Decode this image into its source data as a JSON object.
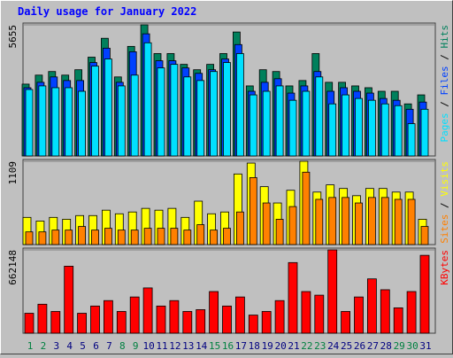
{
  "chart_data": [
    {
      "type": "bar",
      "title": "Daily usage for January 2022",
      "ylim": [
        0,
        5655
      ],
      "yticks": [
        5655
      ],
      "grid": true,
      "legend": "right",
      "legend_separator": " / ",
      "series": [
        {
          "name": "Hits",
          "color": "#00805c",
          "values": [
            3098,
            3486,
            3641,
            3486,
            3718,
            4260,
            5074,
            3408,
            4725,
            5655,
            4415,
            4415,
            3950,
            3718,
            3950,
            4415,
            5345,
            3021,
            3718,
            3641,
            3021,
            3253,
            4415,
            3176,
            3176,
            3021,
            2943,
            2789,
            2789,
            2246,
            2634
          ]
        },
        {
          "name": "Files",
          "color": "#0040ff",
          "values": [
            2943,
            3176,
            3408,
            3253,
            3253,
            4028,
            4648,
            3176,
            4493,
            5267,
            4105,
            4105,
            3796,
            3563,
            3718,
            4183,
            4803,
            2789,
            3176,
            3331,
            2711,
            3021,
            3641,
            2789,
            2943,
            2789,
            2711,
            2479,
            2401,
            2014,
            2324
          ]
        },
        {
          "name": "Pages",
          "color": "#00e0ff",
          "values": [
            2866,
            3021,
            2943,
            2943,
            2789,
            3873,
            4183,
            3021,
            3486,
            4880,
            3796,
            3950,
            3408,
            3253,
            3641,
            4028,
            4415,
            2634,
            2789,
            3021,
            2401,
            2789,
            3408,
            2246,
            2634,
            2479,
            2401,
            2246,
            2169,
            1394,
            2014
          ]
        }
      ]
    },
    {
      "type": "bar",
      "ylim": [
        0,
        1109
      ],
      "yticks": [
        1109
      ],
      "grid": true,
      "legend": "right",
      "legend_separator": " / ",
      "series": [
        {
          "name": "Visits",
          "color": "#ffff00",
          "values": [
            362,
            313,
            362,
            337,
            386,
            386,
            458,
            410,
            434,
            482,
            458,
            482,
            362,
            578,
            410,
            434,
            940,
            1085,
            771,
            554,
            723,
            1109,
            699,
            795,
            747,
            651,
            747,
            747,
            699,
            699,
            337
          ]
        },
        {
          "name": "Sites",
          "color": "#ff8000",
          "values": [
            169,
            169,
            193,
            193,
            241,
            193,
            217,
            193,
            193,
            217,
            217,
            217,
            193,
            265,
            193,
            217,
            434,
            892,
            554,
            337,
            506,
            964,
            602,
            627,
            627,
            554,
            627,
            627,
            602,
            602,
            241
          ]
        }
      ]
    },
    {
      "type": "bar",
      "ylim": [
        0,
        662148
      ],
      "yticks": [
        662148
      ],
      "grid": true,
      "legend": "right",
      "categories": [
        "1",
        "2",
        "3",
        "4",
        "5",
        "6",
        "7",
        "8",
        "9",
        "10",
        "11",
        "12",
        "13",
        "14",
        "15",
        "16",
        "17",
        "18",
        "19",
        "20",
        "21",
        "22",
        "23",
        "24",
        "25",
        "26",
        "27",
        "28",
        "29",
        "30",
        "31"
      ],
      "category_colors": [
        "#008040",
        "#008040",
        "#000080",
        "#000080",
        "#000080",
        "#000080",
        "#000080",
        "#008040",
        "#008040",
        "#000080",
        "#000080",
        "#000080",
        "#000080",
        "#000080",
        "#008040",
        "#008040",
        "#000080",
        "#000080",
        "#000080",
        "#000080",
        "#000080",
        "#008040",
        "#008040",
        "#000080",
        "#000080",
        "#000080",
        "#000080",
        "#000080",
        "#008040",
        "#008040",
        "#000080"
      ],
      "series": [
        {
          "name": "KBytes",
          "color": "#ff0000",
          "values": [
            158334,
            230304,
            172728,
            532578,
            158334,
            215910,
            259092,
            172728,
            287880,
            359850,
            215910,
            259092,
            172728,
            187122,
            331062,
            215910,
            287880,
            143940,
            172728,
            259092,
            561366,
            331062,
            302274,
            662148,
            172728,
            287880,
            431820,
            345456,
            201516,
            331062,
            618942
          ]
        }
      ]
    }
  ]
}
